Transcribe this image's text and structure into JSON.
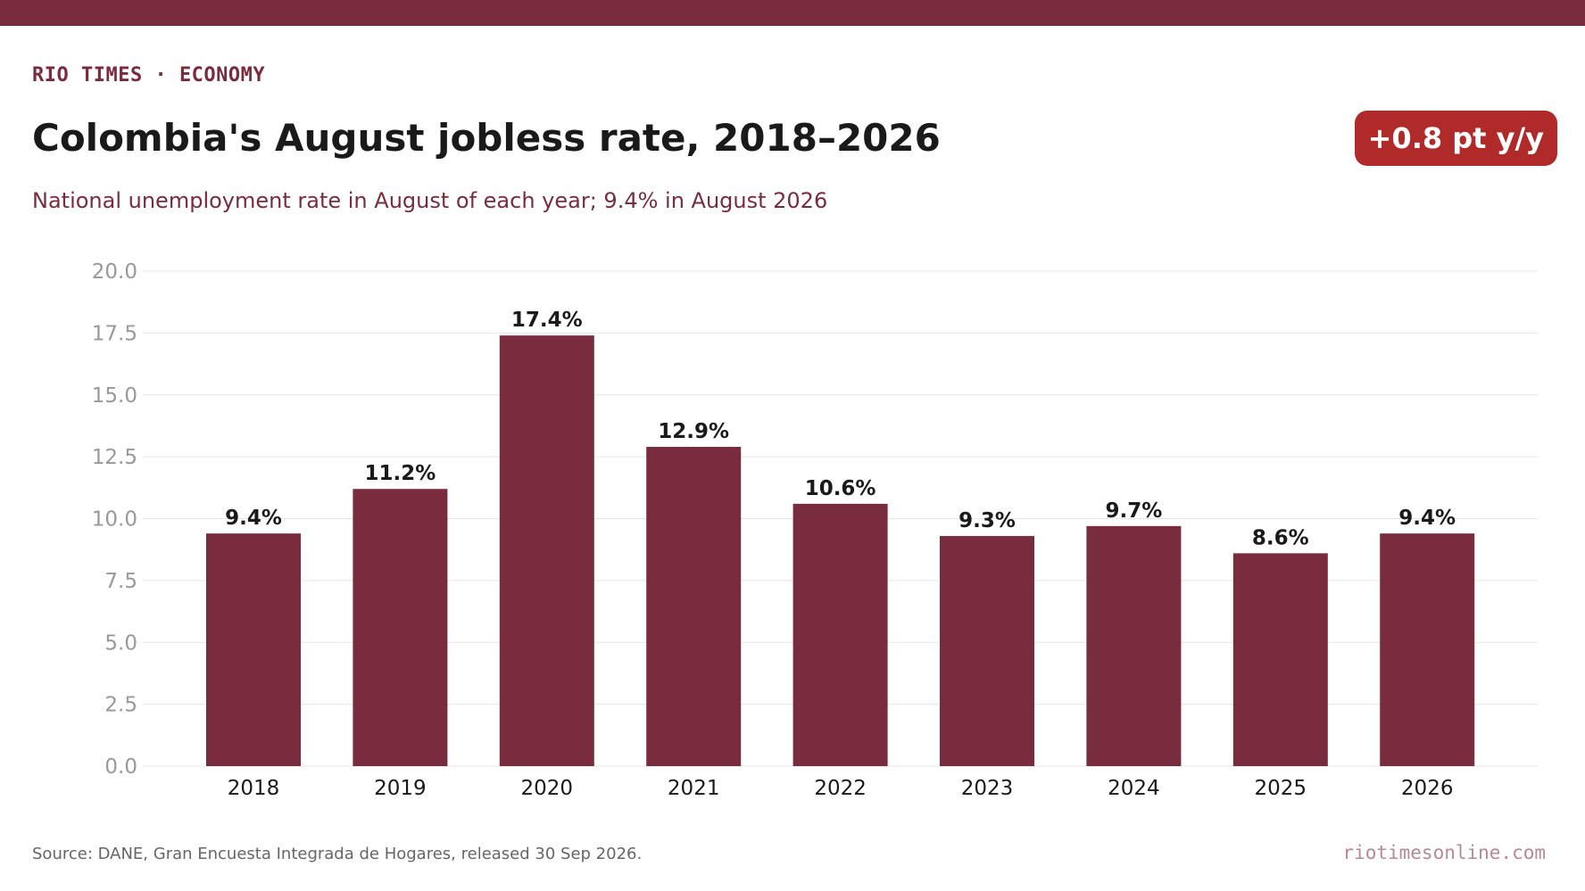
{
  "header": {
    "kicker": "RIO TIMES · ECONOMY",
    "title": "Colombia's August jobless rate, 2018–2026",
    "subtitle": "National unemployment rate in August of each year; 9.4% in August 2026",
    "badge": "+0.8 pt y/y"
  },
  "footer": {
    "source": "Source: DANE, Gran Encuesta Integrada de Hogares, released 30 Sep 2026.",
    "site": "riotimesonline.com"
  },
  "colors": {
    "brand": "#7a2c3f",
    "bar": "#7a2c3f",
    "badge": "#b02a2a",
    "grid": "#e6e6e6",
    "tick_label": "#999999",
    "data_label": "#1a1a1a"
  },
  "chart_data": {
    "type": "bar",
    "categories": [
      "2018",
      "2019",
      "2020",
      "2021",
      "2022",
      "2023",
      "2024",
      "2025",
      "2026"
    ],
    "values": [
      9.4,
      11.2,
      17.4,
      12.9,
      10.6,
      9.3,
      9.7,
      8.6,
      9.4
    ],
    "data_labels": [
      "9.4%",
      "11.2%",
      "17.4%",
      "12.9%",
      "10.6%",
      "9.3%",
      "9.7%",
      "8.6%",
      "9.4%"
    ],
    "ylim": [
      0,
      20
    ],
    "yticks": [
      "0.0",
      "2.5",
      "5.0",
      "7.5",
      "10.0",
      "12.5",
      "15.0",
      "17.5",
      "20.0"
    ],
    "grid": "horizontal",
    "xlabel": "",
    "ylabel": ""
  }
}
